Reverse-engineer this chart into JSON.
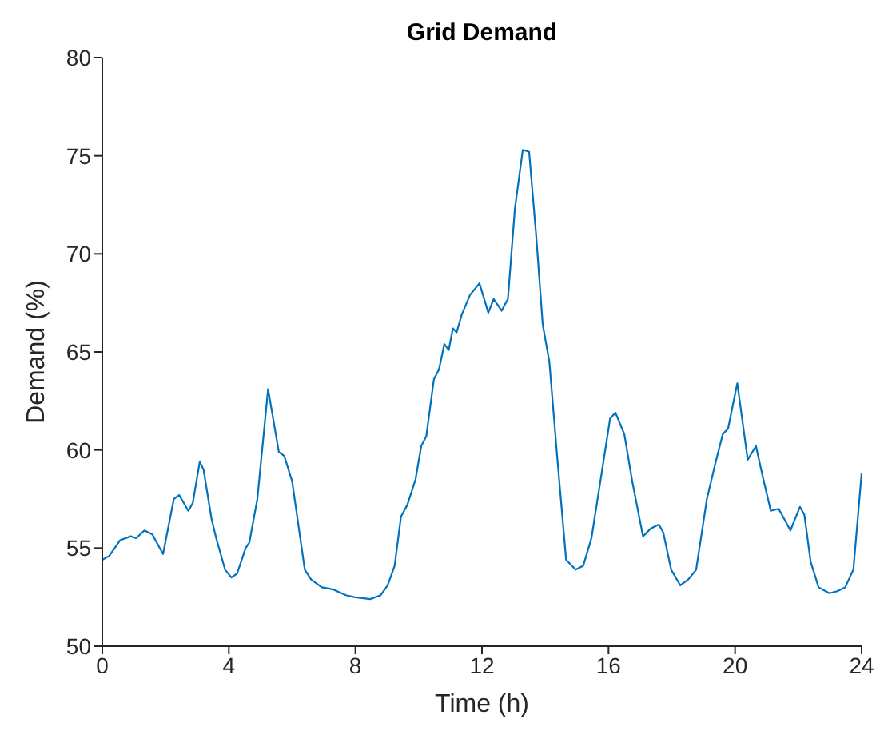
{
  "chart_data": {
    "type": "line",
    "title": "Grid Demand",
    "xlabel": "Time (h)",
    "ylabel": "Demand (%)",
    "x": [
      0,
      0.22,
      0.56,
      0.9,
      1.07,
      1.33,
      1.58,
      1.92,
      2.26,
      2.43,
      2.72,
      2.86,
      3.08,
      3.2,
      3.45,
      3.6,
      3.88,
      4.08,
      4.26,
      4.53,
      4.65,
      4.9,
      5.24,
      5.58,
      5.75,
      6.0,
      6.4,
      6.6,
      6.94,
      7.28,
      7.7,
      7.96,
      8.47,
      8.8,
      9.02,
      9.24,
      9.44,
      9.64,
      9.9,
      10.08,
      10.24,
      10.48,
      10.64,
      10.81,
      10.95,
      11.08,
      11.2,
      11.36,
      11.62,
      11.92,
      12.2,
      12.37,
      12.62,
      12.82,
      13.04,
      13.29,
      13.49,
      13.71,
      13.92,
      14.13,
      14.38,
      14.66,
      14.96,
      15.2,
      15.46,
      15.8,
      16.05,
      16.22,
      16.5,
      16.75,
      17.09,
      17.34,
      17.59,
      17.73,
      17.98,
      18.27,
      18.52,
      18.77,
      19.11,
      19.36,
      19.61,
      19.78,
      20.07,
      20.4,
      20.66,
      20.88,
      21.13,
      21.38,
      21.75,
      22.05,
      22.19,
      22.39,
      22.64,
      22.98,
      23.23,
      23.48,
      23.74,
      24.0
    ],
    "series": [
      {
        "color": "#0072bd",
        "values": [
          54.4,
          54.6,
          55.4,
          55.6,
          55.5,
          55.9,
          55.7,
          54.7,
          57.5,
          57.7,
          56.9,
          57.3,
          59.4,
          59.0,
          56.5,
          55.5,
          53.9,
          53.5,
          53.7,
          55.0,
          55.3,
          57.5,
          63.1,
          59.9,
          59.7,
          58.4,
          53.9,
          53.4,
          53.0,
          52.9,
          52.6,
          52.5,
          52.4,
          52.6,
          53.1,
          54.1,
          56.6,
          57.2,
          58.5,
          60.2,
          60.7,
          63.6,
          64.1,
          65.4,
          65.1,
          66.2,
          66.0,
          66.9,
          67.9,
          68.5,
          67.0,
          67.7,
          67.1,
          67.7,
          72.3,
          75.3,
          75.2,
          71.0,
          66.4,
          64.5,
          59.6,
          54.4,
          53.9,
          54.1,
          55.5,
          59.0,
          61.6,
          61.9,
          60.8,
          58.4,
          55.6,
          56.0,
          56.2,
          55.8,
          53.9,
          53.1,
          53.4,
          53.9,
          57.5,
          59.2,
          60.8,
          61.1,
          63.4,
          59.5,
          60.2,
          58.6,
          56.9,
          57.0,
          55.9,
          57.1,
          56.7,
          54.3,
          53.0,
          52.7,
          52.8,
          53.0,
          53.9,
          58.8
        ]
      }
    ],
    "xlim": [
      0,
      24
    ],
    "xticks": [
      0,
      4,
      8,
      12,
      16,
      20,
      24
    ],
    "ylim": [
      50,
      80
    ],
    "yticks": [
      50,
      55,
      60,
      65,
      70,
      75,
      80
    ],
    "marker": "none",
    "line_style": "solid"
  }
}
